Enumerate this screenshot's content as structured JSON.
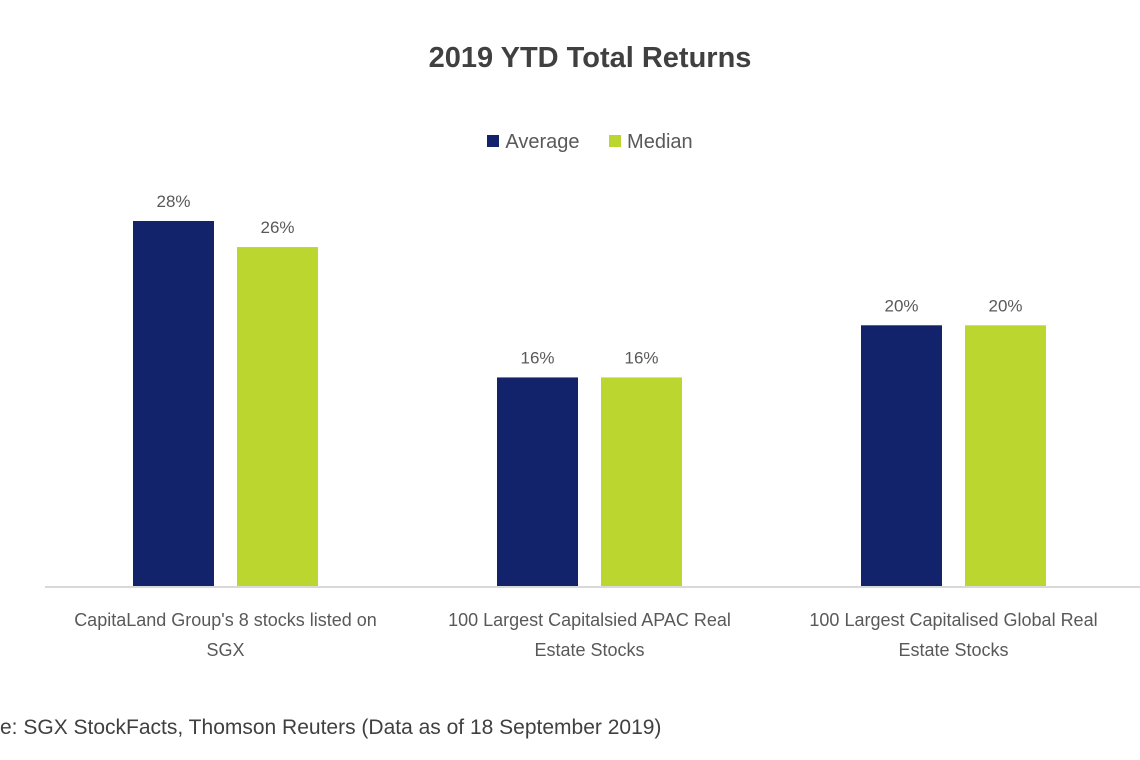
{
  "chart_data": {
    "type": "bar",
    "title": "2019 YTD Total Returns",
    "categories": [
      [
        "CapitaLand Group's 8 stocks listed on",
        "SGX"
      ],
      [
        "100 Largest Capitalsied APAC Real",
        "Estate Stocks"
      ],
      [
        "100 Largest Capitalised Global Real",
        "Estate Stocks"
      ]
    ],
    "series": [
      {
        "name": "Average",
        "color": "#13236b",
        "values": [
          28,
          16,
          20
        ],
        "labels": [
          "28%",
          "16%",
          "20%"
        ]
      },
      {
        "name": "Median",
        "color": "#bcd630",
        "values": [
          26,
          16,
          20
        ],
        "labels": [
          "26%",
          "16%",
          "20%"
        ]
      }
    ],
    "ylim": [
      0,
      28
    ],
    "xlabel": "",
    "ylabel": "",
    "grid": false,
    "legend_position": "top-center"
  },
  "source": "e: SGX StockFacts, Thomson Reuters (Data as of 18 September 2019)"
}
